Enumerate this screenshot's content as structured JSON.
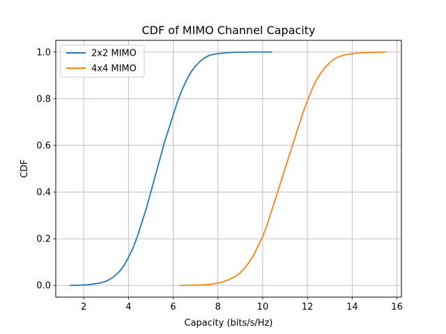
{
  "chart_data": {
    "type": "line",
    "title": "CDF of MIMO Channel Capacity",
    "xlabel": "Capacity (bits/s/Hz)",
    "ylabel": "CDF",
    "xlim": [
      0.75,
      16.2
    ],
    "ylim": [
      -0.05,
      1.05
    ],
    "xticks": [
      2,
      4,
      6,
      8,
      10,
      12,
      14,
      16
    ],
    "yticks": [
      0.0,
      0.2,
      0.4,
      0.6,
      0.8,
      1.0
    ],
    "xtick_labels": [
      "2",
      "4",
      "6",
      "8",
      "10",
      "12",
      "14",
      "16"
    ],
    "ytick_labels": [
      "0.0",
      "0.2",
      "0.4",
      "0.6",
      "0.8",
      "1.0"
    ],
    "grid": true,
    "legend_position": "top-left",
    "series": [
      {
        "name": "2x2 MIMO",
        "color": "#1f77b4",
        "x": [
          1.4,
          1.8,
          2.2,
          2.5,
          2.8,
          3.0,
          3.2,
          3.4,
          3.6,
          3.8,
          4.0,
          4.2,
          4.4,
          4.6,
          4.8,
          5.0,
          5.2,
          5.4,
          5.6,
          5.8,
          6.0,
          6.2,
          6.4,
          6.6,
          6.8,
          7.0,
          7.2,
          7.4,
          7.6,
          7.8,
          8.0,
          8.2,
          8.4,
          8.6,
          8.8,
          9.0,
          9.4,
          9.8,
          10.4
        ],
        "y": [
          0.0,
          0.001,
          0.003,
          0.007,
          0.012,
          0.018,
          0.028,
          0.042,
          0.06,
          0.085,
          0.12,
          0.16,
          0.21,
          0.27,
          0.33,
          0.4,
          0.47,
          0.54,
          0.61,
          0.67,
          0.73,
          0.79,
          0.84,
          0.88,
          0.915,
          0.94,
          0.96,
          0.975,
          0.985,
          0.99,
          0.993,
          0.995,
          0.997,
          0.998,
          0.999,
          0.999,
          1.0,
          1.0,
          1.0
        ]
      },
      {
        "name": "4x4 MIMO",
        "color": "#ff7f0e",
        "x": [
          6.3,
          6.8,
          7.2,
          7.6,
          7.9,
          8.2,
          8.5,
          8.8,
          9.0,
          9.2,
          9.4,
          9.6,
          9.8,
          10.0,
          10.2,
          10.4,
          10.6,
          10.8,
          11.0,
          11.2,
          11.4,
          11.6,
          11.8,
          12.0,
          12.2,
          12.4,
          12.6,
          12.8,
          13.0,
          13.2,
          13.4,
          13.6,
          13.8,
          14.0,
          14.2,
          14.4,
          14.6,
          15.0,
          15.5
        ],
        "y": [
          0.0,
          0.001,
          0.002,
          0.004,
          0.008,
          0.015,
          0.025,
          0.04,
          0.055,
          0.075,
          0.1,
          0.13,
          0.17,
          0.21,
          0.26,
          0.32,
          0.38,
          0.44,
          0.5,
          0.56,
          0.62,
          0.68,
          0.74,
          0.79,
          0.84,
          0.88,
          0.91,
          0.935,
          0.955,
          0.97,
          0.98,
          0.986,
          0.99,
          0.993,
          0.995,
          0.997,
          0.998,
          0.999,
          1.0
        ]
      }
    ]
  }
}
